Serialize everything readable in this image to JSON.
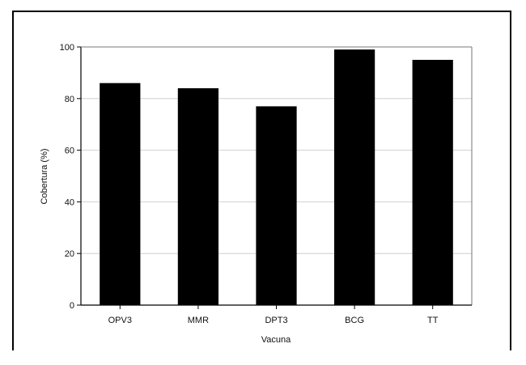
{
  "chart_data": {
    "type": "bar",
    "categories": [
      "OPV3",
      "MMR",
      "DPT3",
      "BCG",
      "TT"
    ],
    "values": [
      86,
      84,
      77,
      99,
      95
    ],
    "xlabel": "Vacuna",
    "ylabel": "Cobertura (%)",
    "ylim": [
      0,
      100
    ],
    "yticks": [
      0,
      20,
      40,
      60,
      80,
      100
    ],
    "grid": true,
    "legend": "none",
    "bar_color": "#000000",
    "grid_color": "#d0d0d0"
  }
}
